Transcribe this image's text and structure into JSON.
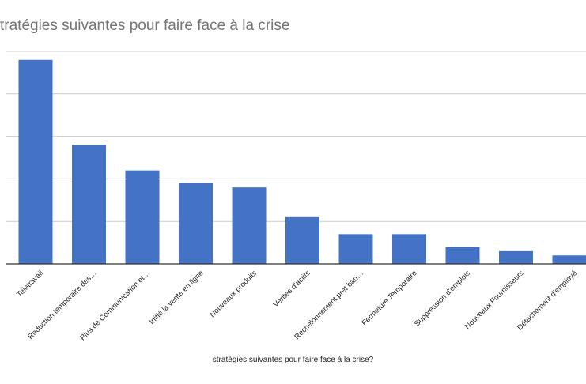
{
  "chart_data": {
    "type": "bar",
    "title": "tratégies suivantes pour faire face à la crise",
    "xlabel": "stratégies suivantes pour faire face à la crise?",
    "ylabel": "",
    "categories": [
      "Teletravail",
      "Reduction temporaire des…",
      "Plus de Communication et…",
      "Initié la vente en ligne",
      "Nouveaux produits",
      "Ventes d'actifs",
      "Rechelonnement pret ban…",
      "Fermeture Temporaire",
      "Suppression d'emplois",
      "Nouveaux Fournisseurs",
      "Détachement d'employé"
    ],
    "values": [
      48,
      28,
      22,
      19,
      18,
      11,
      7,
      7,
      4,
      3,
      2
    ],
    "ylim": [
      0,
      50
    ],
    "grid": true,
    "bar_color": "#4472c4",
    "grid_color": "#cccccc",
    "axis_color": "#333333",
    "legend": "none"
  }
}
